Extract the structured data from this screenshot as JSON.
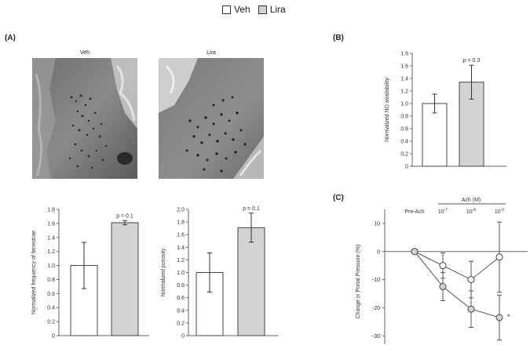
{
  "legend": {
    "items": [
      {
        "label": "Veh",
        "fill": "#ffffff"
      },
      {
        "label": "Lira",
        "fill": "#d3d3d3"
      }
    ]
  },
  "panels": {
    "a_label": "(A)",
    "b_label": "(B)",
    "c_label": "(C)",
    "micrographs": [
      {
        "label": "Veh"
      },
      {
        "label": "Lira"
      }
    ]
  },
  "colors": {
    "veh_fill": "#ffffff",
    "lira_fill": "#d3d3d3",
    "line": "#555555"
  },
  "chart_data": [
    {
      "id": "fenestrae",
      "type": "bar",
      "categories": [
        "Veh",
        "Lira"
      ],
      "values": [
        1.0,
        1.61
      ],
      "errors": [
        0.33,
        0.03
      ],
      "ylabel": "Normalized frequency of fenestrae",
      "ylim": [
        0,
        1.8
      ],
      "yticks": [
        "0",
        "0.2",
        "0.4",
        "0.6",
        "0.8",
        "1.0",
        "1.2",
        "1.4",
        "1.6",
        "1.8"
      ],
      "annotation": "p = 0.1",
      "annotation_index": 1
    },
    {
      "id": "porosity",
      "type": "bar",
      "categories": [
        "Veh",
        "Lira"
      ],
      "values": [
        1.0,
        1.71
      ],
      "errors": [
        0.31,
        0.23
      ],
      "ylabel": "Normalized porosity",
      "ylim": [
        0,
        2.0
      ],
      "yticks": [
        "0",
        "0.2",
        "0.4",
        "0.6",
        "0.8",
        "1.0",
        "1.2",
        "1.4",
        "1.6",
        "1.8",
        "2.0"
      ],
      "annotation": "p = 0.1",
      "annotation_index": 1
    },
    {
      "id": "no",
      "type": "bar",
      "categories": [
        "Veh",
        "Lira"
      ],
      "values": [
        1.0,
        1.34
      ],
      "errors": [
        0.15,
        0.27
      ],
      "ylabel": "Normalized NO availability",
      "ylim": [
        0,
        1.8
      ],
      "yticks": [
        "0",
        "0.2",
        "0.4",
        "0.6",
        "0.8",
        "1.0",
        "1.2",
        "1.4",
        "1.6",
        "1.8"
      ],
      "annotation": "p = 0.3",
      "annotation_index": 1
    },
    {
      "id": "portal",
      "type": "line",
      "x_labels": [
        "Pre-Ach",
        "10",
        "10",
        "10"
      ],
      "x_exponents": [
        "",
        "-7",
        "-6",
        "-5"
      ],
      "group_label": "Ach (M)",
      "ylabel": "Change in Portal Pressure (%)",
      "ylim": [
        -33,
        15
      ],
      "yticks": [
        10,
        0,
        -10,
        -20,
        -30
      ],
      "series": [
        {
          "name": "Veh",
          "fill": "#ffffff",
          "values": [
            0,
            -5,
            -10,
            -2
          ],
          "errors": [
            0,
            4.5,
            6.5,
            12.5
          ]
        },
        {
          "name": "Lira",
          "fill": "#d3d3d3",
          "values": [
            0,
            -12.5,
            -20.5,
            -23.5
          ],
          "errors": [
            0,
            5,
            6.5,
            8
          ]
        }
      ],
      "significance": "*",
      "significance_index": 3
    }
  ]
}
